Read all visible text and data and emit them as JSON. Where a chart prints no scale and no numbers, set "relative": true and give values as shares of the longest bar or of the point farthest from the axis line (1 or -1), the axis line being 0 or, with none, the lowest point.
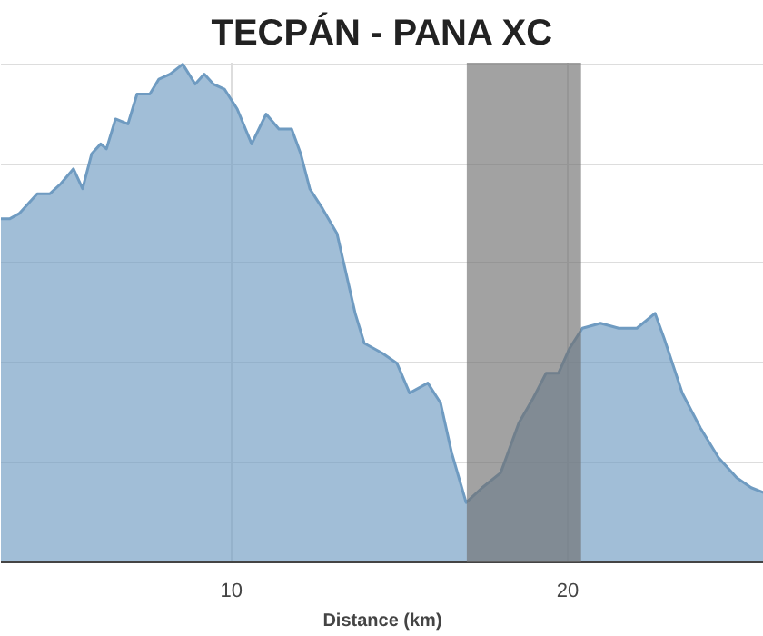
{
  "chart_data": {
    "type": "area",
    "title": "TECPÁN - PANA XC",
    "xlabel": "Distance (km)",
    "relative": true,
    "xlim": [
      3.14,
      25.84
    ],
    "xticks": [
      10,
      20
    ],
    "grid": true,
    "series": [
      {
        "color": "#6f9bc1",
        "x": [
          3.14,
          3.41,
          3.68,
          3.95,
          4.22,
          4.6,
          4.92,
          5.3,
          5.57,
          5.84,
          6.11,
          6.28,
          6.55,
          6.92,
          7.19,
          7.57,
          7.84,
          8.17,
          8.55,
          8.92,
          9.19,
          9.46,
          9.79,
          10.17,
          10.6,
          11.03,
          11.41,
          11.79,
          12.06,
          12.33,
          12.71,
          13.14,
          13.41,
          13.68,
          13.95,
          14.49,
          14.92,
          15.3,
          15.84,
          16.22,
          16.55,
          16.98,
          17.46,
          18.01,
          18.55,
          18.98,
          19.36,
          19.73,
          20.06,
          20.44,
          20.98,
          21.52,
          22.06,
          22.6,
          22.87,
          23.41,
          23.95,
          24.49,
          25.03,
          25.46,
          25.84
        ],
        "values": [
          0.69,
          0.69,
          0.7,
          0.72,
          0.74,
          0.74,
          0.76,
          0.79,
          0.75,
          0.82,
          0.84,
          0.83,
          0.89,
          0.88,
          0.94,
          0.94,
          0.97,
          0.98,
          1,
          0.96,
          0.98,
          0.96,
          0.95,
          0.91,
          0.84,
          0.9,
          0.87,
          0.87,
          0.82,
          0.75,
          0.71,
          0.66,
          0.58,
          0.5,
          0.44,
          0.42,
          0.4,
          0.34,
          0.36,
          0.32,
          0.22,
          0.12,
          0.15,
          0.18,
          0.28,
          0.33,
          0.38,
          0.38,
          0.43,
          0.47,
          0.48,
          0.47,
          0.47,
          0.5,
          0.45,
          0.34,
          0.27,
          0.21,
          0.17,
          0.15,
          0.14
        ]
      }
    ],
    "bands": [
      {
        "axis": "x",
        "from": 17.0,
        "to": 20.4,
        "color": "#707070"
      }
    ]
  }
}
